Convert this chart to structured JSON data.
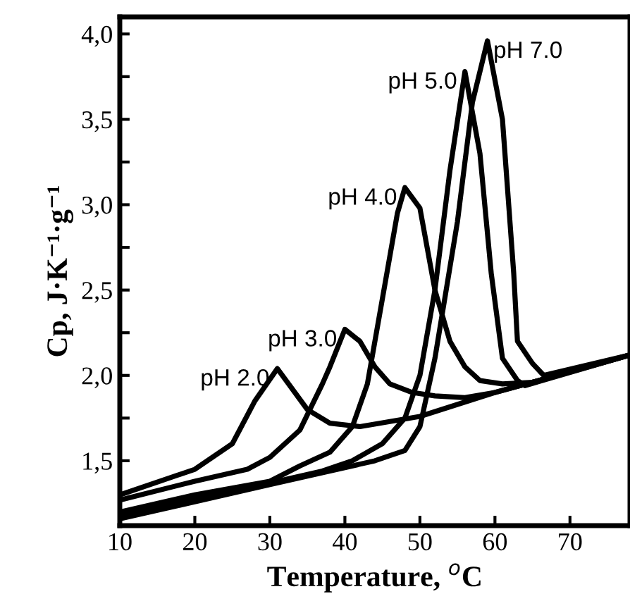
{
  "chart_data": {
    "type": "line",
    "xlabel": "Temperature, $^{o}$C",
    "ylabel": "Cp, J·K⁻¹·g⁻¹",
    "xlim": [
      10,
      78
    ],
    "ylim": [
      1.12,
      4.1
    ],
    "xticks": [
      10,
      20,
      30,
      40,
      50,
      60,
      70
    ],
    "yticks": [
      {
        "value": 1.5,
        "label": "1,5"
      },
      {
        "value": 1.75,
        "label": null
      },
      {
        "value": 2.0,
        "label": "2,0"
      },
      {
        "value": 2.25,
        "label": null
      },
      {
        "value": 2.5,
        "label": "2,5"
      },
      {
        "value": 2.75,
        "label": null
      },
      {
        "value": 3.0,
        "label": "3,0"
      },
      {
        "value": 3.25,
        "label": null
      },
      {
        "value": 3.5,
        "label": "3,5"
      },
      {
        "value": 3.75,
        "label": null
      },
      {
        "value": 4.0,
        "label": "4,0"
      }
    ],
    "grid": false,
    "legend": false,
    "marker": "none",
    "line_style": "solid",
    "series": [
      {
        "name": "pH 2.0",
        "color": "#000000",
        "x": [
          10,
          20,
          25,
          28,
          31,
          35,
          38,
          42,
          50,
          55,
          60,
          65,
          70,
          78
        ],
        "values": [
          1.3,
          1.45,
          1.6,
          1.85,
          2.04,
          1.8,
          1.72,
          1.7,
          1.76,
          1.83,
          1.9,
          1.96,
          2.02,
          2.12
        ]
      },
      {
        "name": "pH 3.0",
        "color": "#000000",
        "x": [
          10,
          20,
          27,
          30,
          34,
          37,
          38,
          40,
          42,
          44,
          46,
          49,
          52,
          56,
          60,
          65,
          78
        ],
        "values": [
          1.27,
          1.38,
          1.45,
          1.52,
          1.68,
          1.95,
          2.05,
          2.27,
          2.2,
          2.05,
          1.95,
          1.9,
          1.88,
          1.87,
          1.9,
          1.96,
          2.12
        ]
      },
      {
        "name": "pH 4.0",
        "color": "#000000",
        "x": [
          10,
          20,
          30,
          34,
          38,
          41,
          43,
          45,
          47,
          48,
          50,
          52,
          54,
          56,
          58,
          61,
          65,
          78
        ],
        "values": [
          1.2,
          1.3,
          1.38,
          1.47,
          1.55,
          1.7,
          1.95,
          2.45,
          2.95,
          3.1,
          2.98,
          2.5,
          2.2,
          2.05,
          1.97,
          1.95,
          1.96,
          2.12
        ]
      },
      {
        "name": "pH 5.0",
        "color": "#000000",
        "x": [
          10,
          30,
          37,
          41,
          45,
          48,
          50,
          52,
          54,
          56,
          58,
          59.5,
          61,
          63,
          64,
          78
        ],
        "values": [
          1.18,
          1.37,
          1.44,
          1.5,
          1.6,
          1.75,
          2.0,
          2.5,
          3.2,
          3.78,
          3.3,
          2.6,
          2.1,
          1.97,
          1.94,
          2.12
        ]
      },
      {
        "name": "pH 7.0",
        "color": "#000000",
        "x": [
          10,
          30,
          44,
          48,
          50,
          52,
          55,
          57,
          59,
          61,
          62.5,
          63,
          65,
          66.5,
          78
        ],
        "values": [
          1.16,
          1.36,
          1.5,
          1.56,
          1.7,
          2.1,
          2.9,
          3.6,
          3.96,
          3.5,
          2.6,
          2.2,
          2.07,
          2.0,
          2.12
        ]
      }
    ]
  }
}
